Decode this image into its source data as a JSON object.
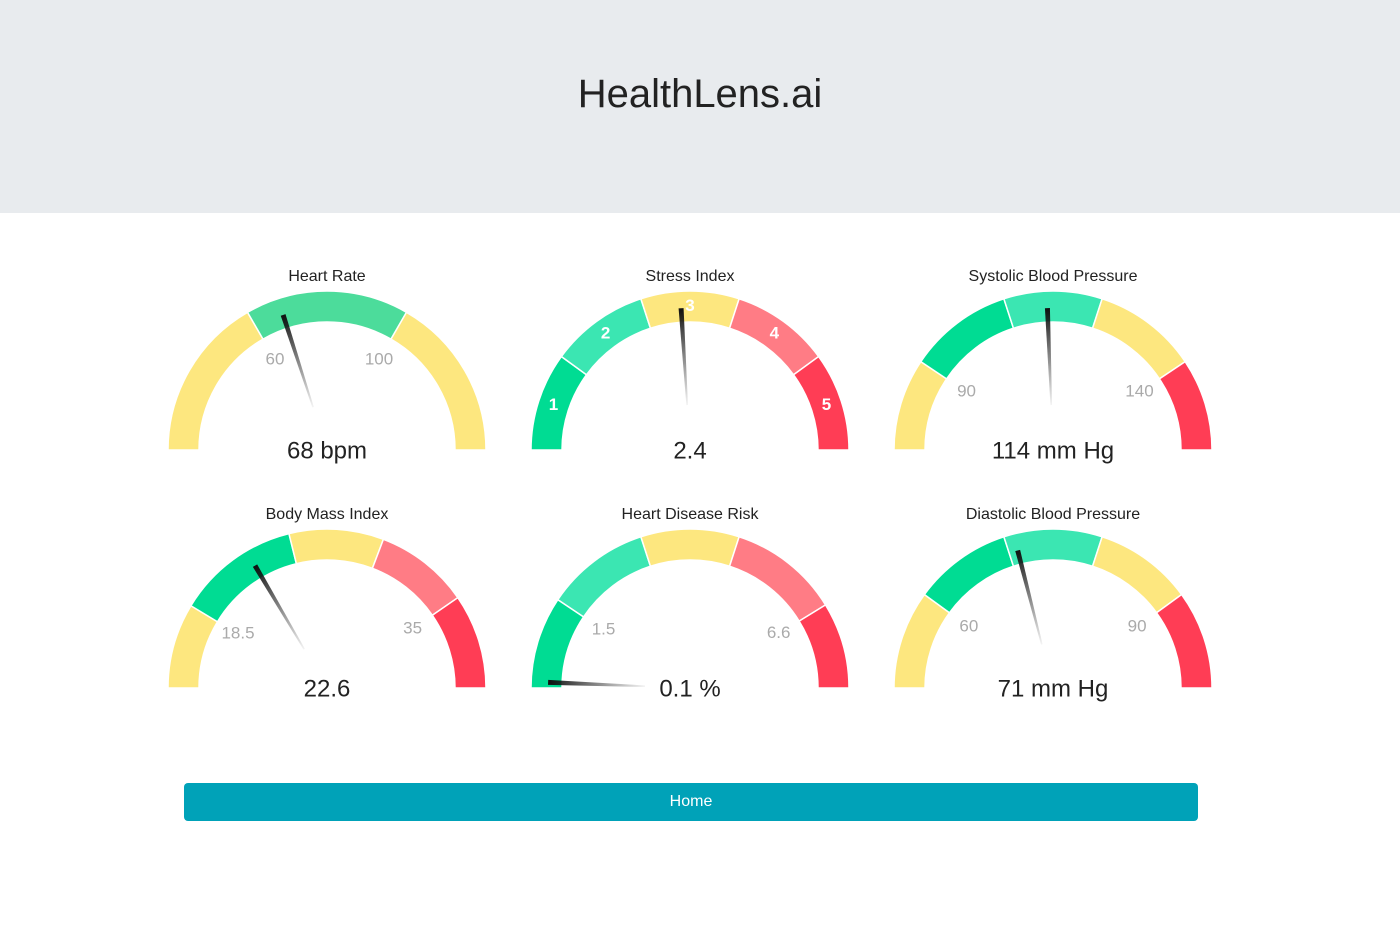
{
  "header": {
    "title": "HealthLens.ai"
  },
  "gauges": [
    {
      "title": "Heart Rate",
      "value": 68,
      "value_label": "68 bpm",
      "range": [
        20,
        140
      ],
      "stops": [
        20,
        60,
        100,
        140
      ],
      "colors": [
        "#fde77f",
        "#4cdc9b",
        "#fde77f"
      ],
      "ticks": [
        60,
        100
      ]
    },
    {
      "title": "Stress Index",
      "value": 2.4,
      "value_label": "2.4",
      "range": [
        0,
        5
      ],
      "stops": [
        0,
        1,
        2,
        3,
        4,
        5
      ],
      "colors": [
        "#00dc93",
        "#3be6b2",
        "#fde77f",
        "#ff7c85",
        "#ff3d55"
      ],
      "segment_labels": [
        1,
        2,
        3,
        4,
        5
      ]
    },
    {
      "title": "Systolic Blood Pressure",
      "value": 114,
      "value_label": "114 mm Hg",
      "range": [
        75,
        155
      ],
      "stops": [
        75,
        90,
        107,
        123,
        140,
        155
      ],
      "colors": [
        "#fde77f",
        "#00dc93",
        "#3be6b2",
        "#fde77f",
        "#ff3d55"
      ],
      "ticks": [
        90,
        140
      ]
    },
    {
      "title": "Body Mass Index",
      "value": 22.6,
      "value_label": "22.6",
      "range": [
        14,
        40
      ],
      "stops": [
        14,
        18.5,
        25,
        30,
        35,
        40
      ],
      "colors": [
        "#fde77f",
        "#00dc93",
        "#fde77f",
        "#ff7c85",
        "#ff3d55"
      ],
      "ticks": [
        18.5,
        35
      ]
    },
    {
      "title": "Heart Disease Risk",
      "value": 0.1,
      "value_label": "0.1 %",
      "range": [
        0,
        8
      ],
      "stops": [
        0,
        1.5,
        3.2,
        4.8,
        6.6,
        8
      ],
      "colors": [
        "#00dc93",
        "#3be6b2",
        "#fde77f",
        "#ff7c85",
        "#ff3d55"
      ],
      "ticks": [
        1.5,
        6.6
      ]
    },
    {
      "title": "Diastolic Blood Pressure",
      "value": 71,
      "value_label": "71 mm Hg",
      "range": [
        50,
        100
      ],
      "stops": [
        50,
        60,
        70,
        80,
        90,
        100
      ],
      "colors": [
        "#fde77f",
        "#00dc93",
        "#3be6b2",
        "#fde77f",
        "#ff3d55"
      ],
      "ticks": [
        60,
        90
      ]
    }
  ],
  "button": {
    "label": "Home"
  }
}
